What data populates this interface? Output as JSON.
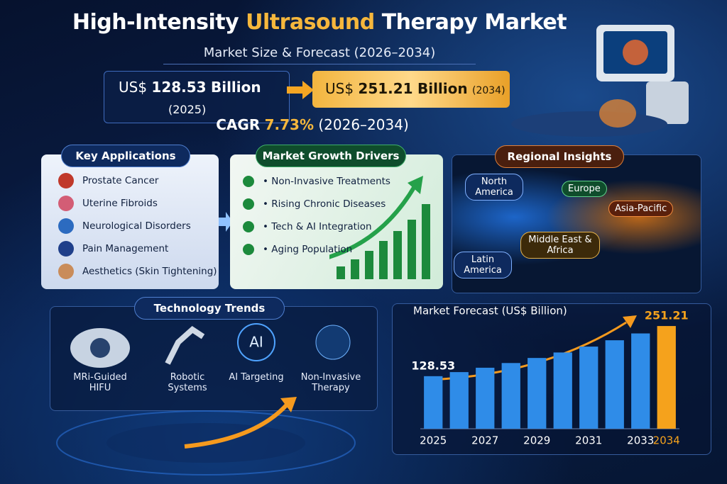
{
  "header": {
    "title_parts": [
      "High-Intensity ",
      "Ultrasound",
      " Therapy Market"
    ],
    "subtitle": "Market Size & Forecast (2026–2034)"
  },
  "stats": {
    "start": {
      "prefix": "US$",
      "value": "128.53",
      "unit": "Billion",
      "year": "(2025)"
    },
    "end": {
      "prefix": "US$",
      "value": "251.21",
      "unit": "Billion",
      "year": "(2034)"
    },
    "cagr": {
      "label": "CAGR",
      "value": "7.73%",
      "period": "(2026–2034)"
    }
  },
  "key_applications": {
    "title": "Key Applications",
    "items": [
      "Prostate Cancer",
      "Uterine Fibroids",
      "Neurological Disorders",
      "Pain Management",
      "Aesthetics (Skin Tightening)"
    ]
  },
  "growth_drivers": {
    "title": "Market Growth Drivers",
    "items": [
      "Non-Invasive Treatments",
      "Rising Chronic Diseases",
      "Tech & AI Integration",
      "Aging Population"
    ]
  },
  "regional_insights": {
    "title": "Regional Insights",
    "regions": [
      "North America",
      "Europe",
      "Asia-Pacific",
      "Middle East & Africa",
      "Latin America"
    ]
  },
  "technology_trends": {
    "title": "Technology Trends",
    "items": [
      "MRi-Guided HIFU",
      "Robotic Systems",
      "AI Targeting",
      "Non-Invasive Therapy"
    ],
    "ai_badge": "AI"
  },
  "chart_data": {
    "type": "bar",
    "title": "Market Forecast (US$ Billion)",
    "categories": [
      "2025",
      null,
      "2027",
      null,
      "2029",
      null,
      "2031",
      null,
      "2033",
      "2034"
    ],
    "values": [
      128.53,
      138.5,
      149.2,
      160.7,
      173.1,
      186.5,
      200.9,
      216.4,
      233.1,
      251.21
    ],
    "value_labels": [
      "128.53",
      null,
      null,
      null,
      null,
      null,
      null,
      null,
      null,
      "251.21"
    ],
    "colors": [
      "#2f8ce8",
      "#2f8ce8",
      "#2f8ce8",
      "#2f8ce8",
      "#2f8ce8",
      "#2f8ce8",
      "#2f8ce8",
      "#2f8ce8",
      "#2f8ce8",
      "#f5a21c"
    ],
    "ylim": [
      0,
      260
    ]
  }
}
